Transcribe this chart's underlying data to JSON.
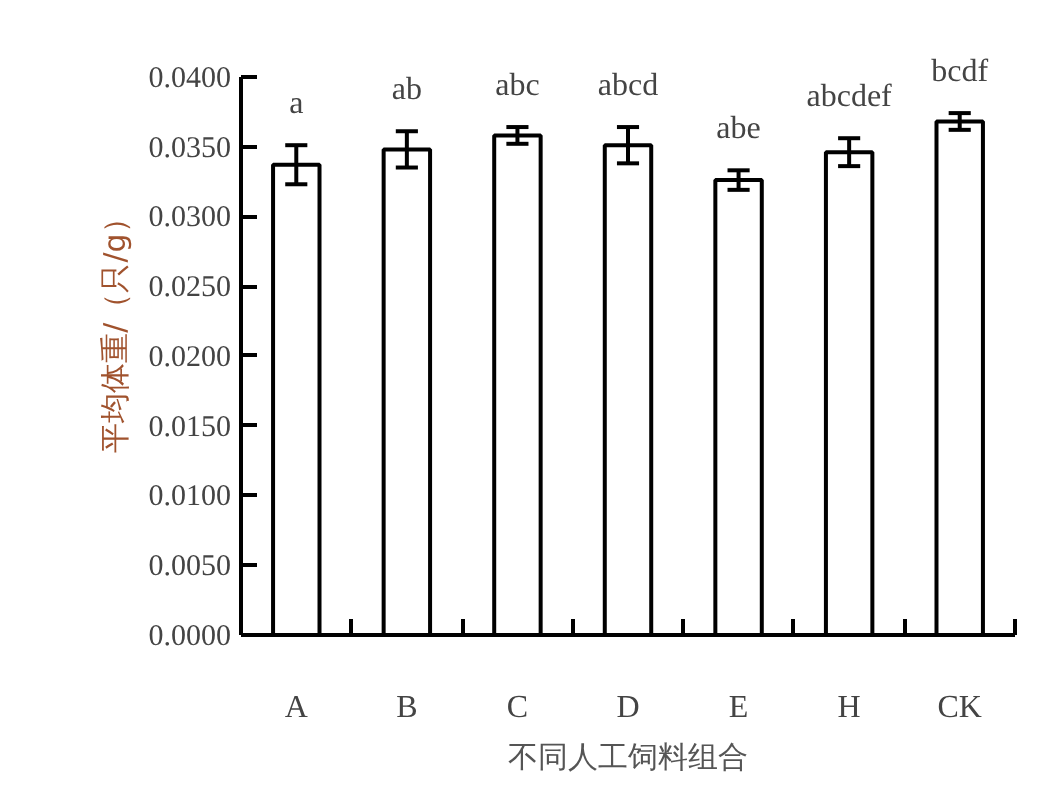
{
  "chart_data": {
    "type": "bar",
    "xlabel": "不同人工饲料组合",
    "ylabel": "平均体重/（只/g）",
    "categories": [
      "A",
      "B",
      "C",
      "D",
      "E",
      "H",
      "CK"
    ],
    "values": [
      0.0337,
      0.0348,
      0.0358,
      0.0351,
      0.0326,
      0.0346,
      0.0368
    ],
    "errors": [
      0.0014,
      0.0013,
      0.0006,
      0.0013,
      0.0007,
      0.001,
      0.0006
    ],
    "color": "#ffffff",
    "ylim": [
      0,
      0.04
    ],
    "yticks": [
      {
        "value": 0,
        "label": "0.0000"
      },
      {
        "value": 0.005,
        "label": "0.0050"
      },
      {
        "value": 0.01,
        "label": "0.0100"
      },
      {
        "value": 0.015,
        "label": "0.0150"
      },
      {
        "value": 0.02,
        "label": "0.0200"
      },
      {
        "value": 0.025,
        "label": "0.0250"
      },
      {
        "value": 0.03,
        "label": "0.0300"
      },
      {
        "value": 0.035,
        "label": "0.0350"
      },
      {
        "value": 0.04,
        "label": "0.0400"
      }
    ],
    "annotations": [
      {
        "text": "a",
        "x": "A",
        "y": 0.0351
      },
      {
        "text": "ab",
        "x": "B",
        "y": 0.0361
      },
      {
        "text": "abc",
        "x": "C",
        "y": 0.0364
      },
      {
        "text": "abcd",
        "x": "D",
        "y": 0.0364
      },
      {
        "text": "abe",
        "x": "E",
        "y": 0.0333
      },
      {
        "text": "abcdef",
        "x": "H",
        "y": 0.0356
      },
      {
        "text": "bcdf",
        "x": "CK",
        "y": 0.0374
      }
    ],
    "grid": false
  }
}
